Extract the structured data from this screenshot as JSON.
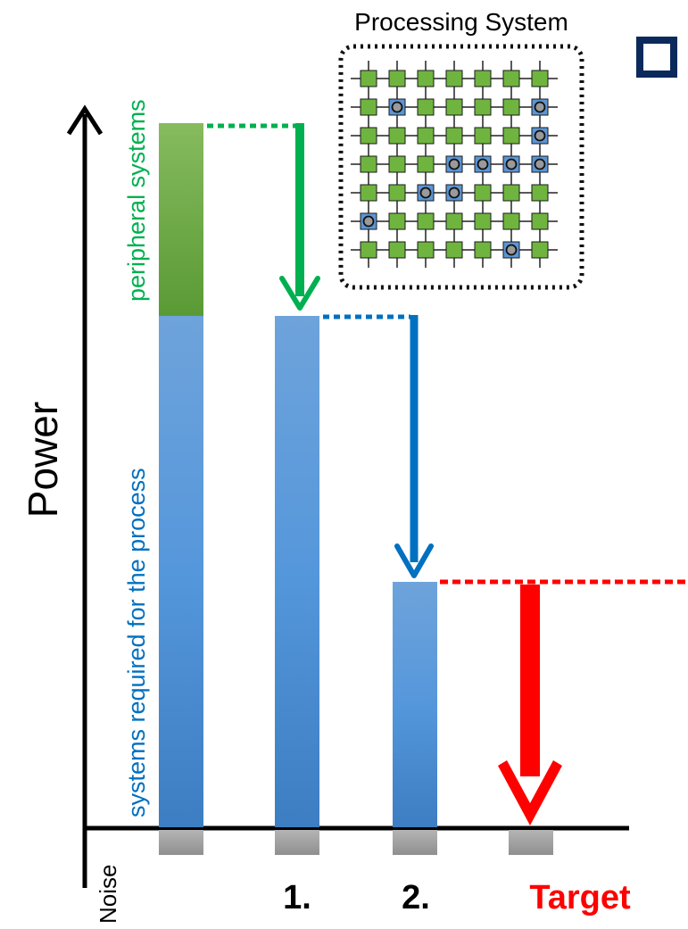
{
  "power_axis_label": "Power",
  "segment_labels": {
    "peripheral": "peripheral systems",
    "process": "systems required for the process"
  },
  "noise_label": "Noise",
  "x_labels": [
    "1.",
    "2.",
    "Target"
  ],
  "processing_system": {
    "title": "Processing System",
    "grid_rows": 7,
    "grid_cols": 7,
    "marked_cells": [
      [
        1,
        1
      ],
      [
        1,
        6
      ],
      [
        2,
        6
      ],
      [
        3,
        3
      ],
      [
        3,
        4
      ],
      [
        3,
        5
      ],
      [
        3,
        6
      ],
      [
        4,
        2
      ],
      [
        4,
        3
      ],
      [
        5,
        0
      ],
      [
        6,
        5
      ]
    ]
  },
  "colors": {
    "peripheral_green": "#5da038",
    "process_blue": "#4d8ed4",
    "noise_gray": "#9e9e9e",
    "arrow_green": "#00b050",
    "arrow_blue": "#0070c0",
    "target_red": "#ff0000",
    "label_green": "#00b050",
    "label_blue": "#0070c0",
    "icon_navy": "#0b2a5c"
  },
  "corner_icon": "square-outline-icon"
}
